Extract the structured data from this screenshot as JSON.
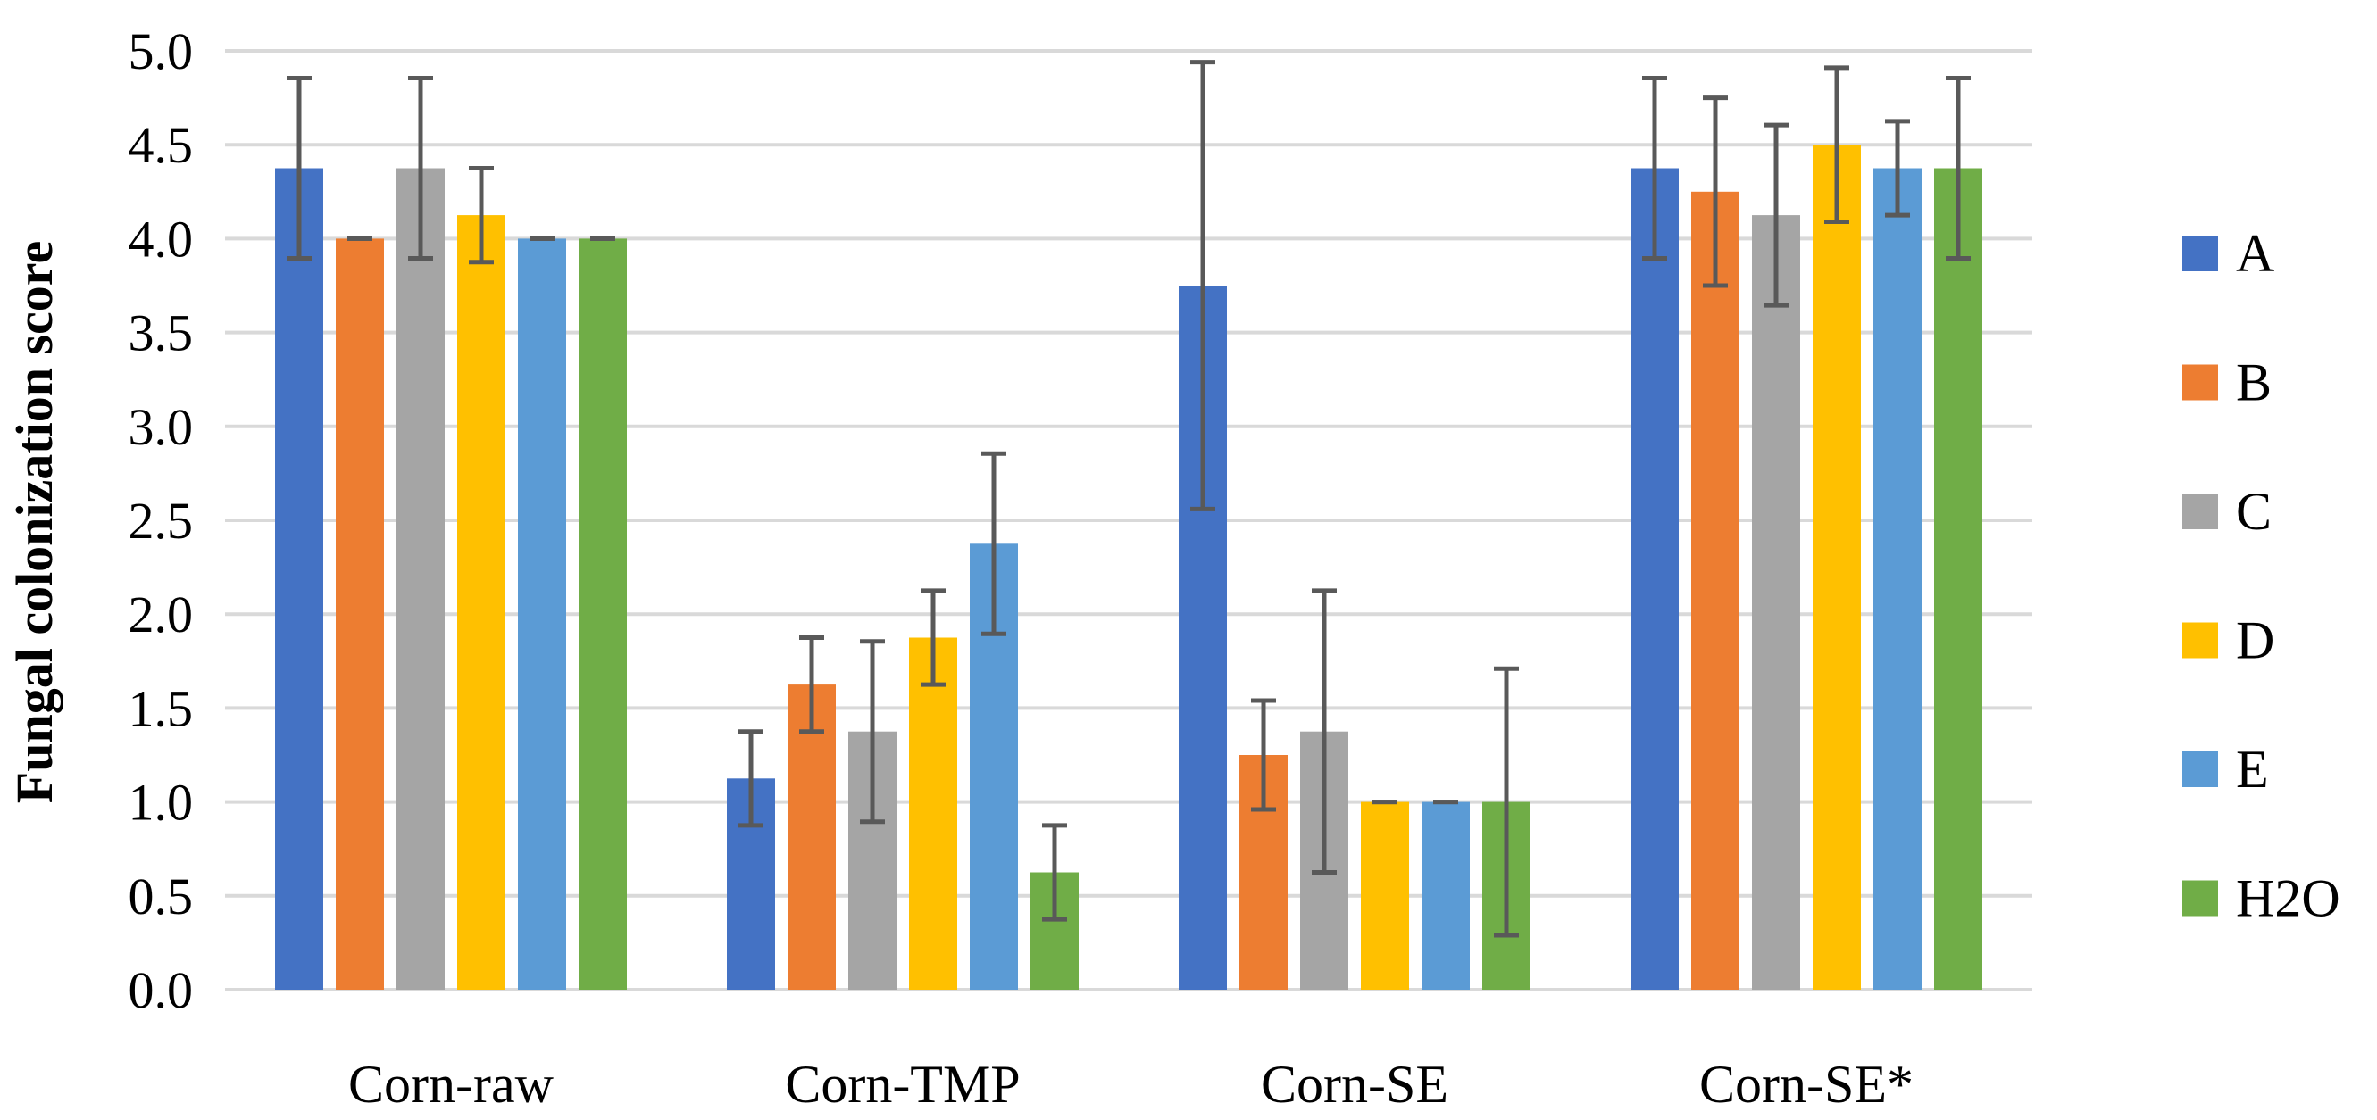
{
  "chart_data": {
    "type": "bar",
    "title": "",
    "xlabel": "",
    "ylabel": "Fungal colonization score",
    "ylim": [
      0,
      5
    ],
    "ytick_labels": [
      "0.0",
      "0.5",
      "1.0",
      "1.5",
      "2.0",
      "2.5",
      "3.0",
      "3.5",
      "4.0",
      "4.5",
      "5.0"
    ],
    "grid": true,
    "legend_position": "right",
    "categories": [
      "Corn-raw",
      "Corn-TMP",
      "Corn-SE",
      "Corn-SE*"
    ],
    "series": [
      {
        "name": "A",
        "color": "#4472C4",
        "values": [
          4.375,
          1.125,
          3.75,
          4.375
        ],
        "errors": [
          0.48,
          0.25,
          1.19,
          0.48
        ]
      },
      {
        "name": "B",
        "color": "#ED7D31",
        "values": [
          4.0,
          1.625,
          1.25,
          4.25
        ],
        "errors": [
          0.0,
          0.25,
          0.29,
          0.5
        ]
      },
      {
        "name": "C",
        "color": "#A5A5A5",
        "values": [
          4.375,
          1.375,
          1.375,
          4.125
        ],
        "errors": [
          0.48,
          0.48,
          0.75,
          0.48
        ]
      },
      {
        "name": "D",
        "color": "#FFC000",
        "values": [
          4.125,
          1.875,
          1.0,
          4.5
        ],
        "errors": [
          0.25,
          0.25,
          0.0,
          0.41
        ]
      },
      {
        "name": "E",
        "color": "#5B9BD5",
        "values": [
          4.0,
          2.375,
          1.0,
          4.375
        ],
        "errors": [
          0.0,
          0.48,
          0.0,
          0.25
        ]
      },
      {
        "name": "H2O",
        "color": "#70AD47",
        "values": [
          4.0,
          0.625,
          1.0,
          4.375
        ],
        "errors": [
          0.0,
          0.25,
          0.71,
          0.48
        ]
      }
    ]
  }
}
